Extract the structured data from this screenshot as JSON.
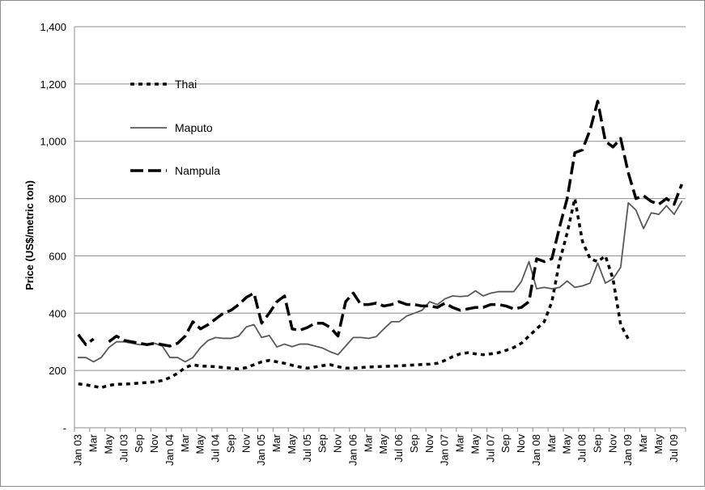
{
  "chart_data": {
    "type": "line",
    "title": "",
    "xlabel": "",
    "ylabel": "Price (US$/metric ton)",
    "ylim": [
      0,
      1400
    ],
    "yticks": [
      0,
      200,
      400,
      600,
      800,
      1000,
      1200,
      1400
    ],
    "ytick_labels": [
      "-",
      "200",
      "400",
      "600",
      "800",
      "1,000",
      "1,200",
      "1,400"
    ],
    "grid": true,
    "legend": "top-left, inside plot",
    "x": [
      "Jan 03",
      "Feb 03",
      "Mar 03",
      "Apr 03",
      "May 03",
      "Jun 03",
      "Jul 03",
      "Aug 03",
      "Sep 03",
      "Oct 03",
      "Nov 03",
      "Dec 03",
      "Jan 04",
      "Feb 04",
      "Mar 04",
      "Apr 04",
      "May 04",
      "Jun 04",
      "Jul 04",
      "Aug 04",
      "Sep 04",
      "Oct 04",
      "Nov 04",
      "Dec 04",
      "Jan 05",
      "Feb 05",
      "Mar 05",
      "Apr 05",
      "May 05",
      "Jun 05",
      "Jul 05",
      "Aug 05",
      "Sep 05",
      "Oct 05",
      "Nov 05",
      "Dec 05",
      "Jan 06",
      "Feb 06",
      "Mar 06",
      "Apr 06",
      "May 06",
      "Jun 06",
      "Jul 06",
      "Aug 06",
      "Sep 06",
      "Oct 06",
      "Nov 06",
      "Dec 06",
      "Jan 07",
      "Feb 07",
      "Mar 07",
      "Apr 07",
      "May 07",
      "Jun 07",
      "Jul 07",
      "Aug 07",
      "Sep 07",
      "Oct 07",
      "Nov 07",
      "Dec 07",
      "Jan 08",
      "Feb 08",
      "Mar 08",
      "Apr 08",
      "May 08",
      "Jun 08",
      "Jul 08",
      "Aug 08",
      "Sep 08",
      "Oct 08",
      "Nov 08",
      "Dec 08",
      "Jan 09",
      "Feb 09",
      "Mar 09",
      "Apr 09",
      "May 09",
      "Jun 09",
      "Jul 09",
      "Aug 09"
    ],
    "tick_labels": [
      "Jan 03",
      "Mar",
      "May",
      "Jul 03",
      "Sep",
      "Nov",
      "Jan 04",
      "Mar",
      "May",
      "Jul 04",
      "Sep",
      "Nov",
      "Jan 05",
      "Mar",
      "May",
      "Jul 05",
      "Sep",
      "Nov",
      "Jan 06",
      "Mar",
      "May",
      "Jul 06",
      "Sep",
      "Nov",
      "Jan 07",
      "Mar",
      "May",
      "Jul 07",
      "Sep",
      "Nov",
      "Jan 08",
      "Mar",
      "May",
      "Jul 08",
      "Sep",
      "Nov",
      "Jan 09",
      "Mar",
      "May",
      "Jul 09"
    ],
    "series": [
      {
        "name": "Thai",
        "style": "dotted",
        "color": "#000000",
        "values": [
          153,
          150,
          145,
          140,
          148,
          152,
          152,
          154,
          156,
          158,
          160,
          165,
          175,
          190,
          210,
          220,
          215,
          215,
          213,
          210,
          208,
          205,
          210,
          220,
          230,
          235,
          230,
          225,
          218,
          212,
          208,
          212,
          217,
          220,
          213,
          208,
          208,
          210,
          212,
          213,
          214,
          215,
          216,
          218,
          219,
          221,
          222,
          225,
          235,
          248,
          258,
          262,
          258,
          255,
          258,
          262,
          270,
          280,
          295,
          320,
          345,
          370,
          440,
          580,
          680,
          800,
          650,
          590,
          580,
          600,
          520,
          360,
          310,
          null,
          null,
          null,
          null,
          null,
          null,
          null
        ]
      },
      {
        "name": "Maputo",
        "style": "solid",
        "color": "#595959",
        "values": [
          245,
          245,
          230,
          245,
          280,
          300,
          300,
          295,
          290,
          290,
          295,
          285,
          245,
          245,
          230,
          245,
          280,
          305,
          315,
          312,
          312,
          320,
          352,
          360,
          315,
          322,
          282,
          292,
          283,
          292,
          292,
          285,
          278,
          265,
          255,
          285,
          315,
          315,
          312,
          318,
          345,
          370,
          370,
          390,
          400,
          410,
          440,
          430,
          450,
          460,
          458,
          460,
          478,
          460,
          470,
          475,
          475,
          475,
          510,
          580,
          485,
          490,
          485,
          490,
          512,
          490,
          495,
          505,
          575,
          505,
          520,
          560,
          785,
          760,
          695,
          750,
          745,
          775,
          745,
          790
        ]
      },
      {
        "name": "Nampula",
        "style": "dashed",
        "color": "#000000",
        "values": [
          325,
          290,
          310,
          null,
          300,
          320,
          305,
          300,
          295,
          290,
          295,
          290,
          285,
          295,
          320,
          370,
          345,
          360,
          380,
          400,
          410,
          430,
          455,
          470,
          365,
          400,
          440,
          460,
          345,
          340,
          350,
          365,
          365,
          350,
          320,
          440,
          470,
          430,
          430,
          435,
          425,
          430,
          440,
          430,
          430,
          425,
          425,
          420,
          435,
          420,
          410,
          415,
          420,
          420,
          430,
          430,
          425,
          415,
          420,
          440,
          590,
          580,
          590,
          700,
          800,
          960,
          970,
          1040,
          1140,
          1000,
          980,
          1010,
          890,
          800,
          810,
          790,
          780,
          800,
          780,
          850
        ]
      }
    ]
  }
}
